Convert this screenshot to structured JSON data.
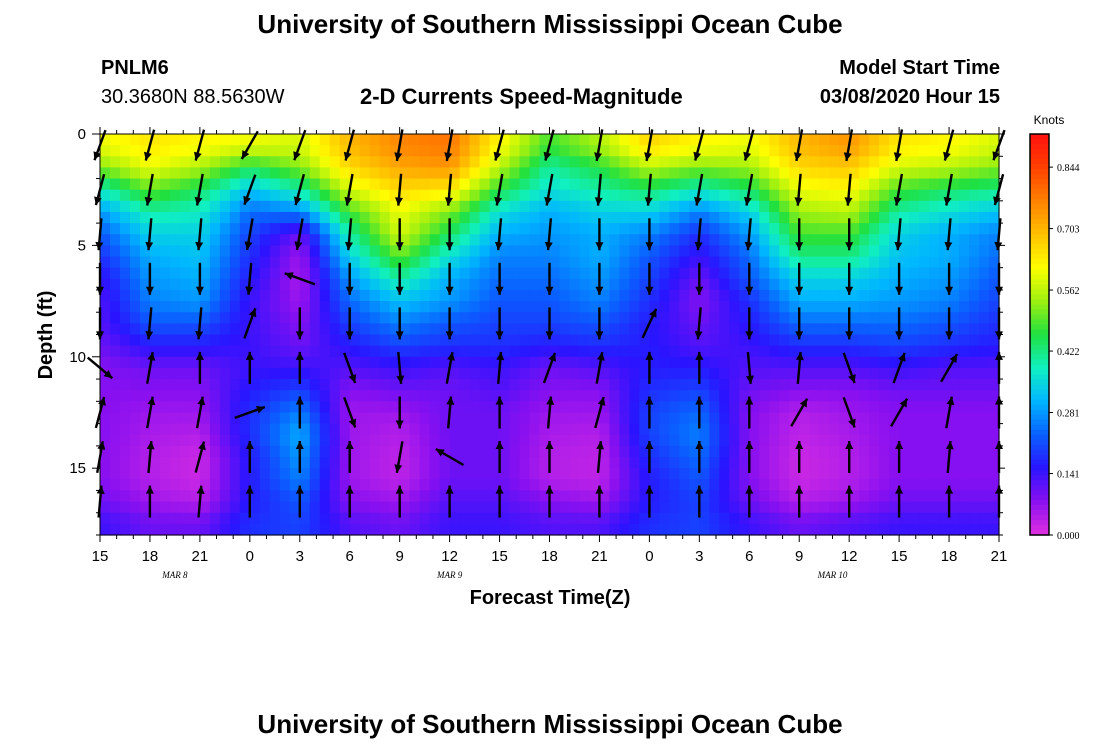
{
  "header": {
    "title": "University of Southern Mississippi Ocean Cube",
    "station_id": "PNLM6",
    "station_coords": "30.3680N 88.5630W",
    "subtitle": "2-D Currents Speed-Magnitude",
    "model_start_label": "Model Start Time",
    "model_start_value": "03/08/2020 Hour 15"
  },
  "footer": {
    "title": "University of Southern Mississippi Ocean Cube"
  },
  "chart_data": {
    "type": "heatmap",
    "title": "2-D Currents Speed-Magnitude",
    "xlabel": "Forecast Time(Z)",
    "ylabel": "Depth (ft)",
    "x_tick_labels": [
      "15",
      "18",
      "21",
      "0",
      "3",
      "6",
      "9",
      "12",
      "15",
      "18",
      "21",
      "0",
      "3",
      "6",
      "9",
      "12",
      "15",
      "18",
      "21"
    ],
    "x_tick_hours": [
      0,
      3,
      6,
      9,
      12,
      15,
      18,
      21,
      24,
      27,
      30,
      33,
      36,
      39,
      42,
      45,
      48,
      51,
      54
    ],
    "date_labels": [
      {
        "text": "MAR 8",
        "hour": 4.5
      },
      {
        "text": "MAR 9",
        "hour": 21
      },
      {
        "text": "MAR 10",
        "hour": 44
      }
    ],
    "y_ticks": [
      0,
      5,
      10,
      15
    ],
    "ylim": [
      0,
      18
    ],
    "xlim": [
      0,
      54
    ],
    "colorbar": {
      "unit": "Knots",
      "ticks": [
        "0.844",
        "0.703",
        "0.562",
        "0.422",
        "0.281",
        "0.141",
        "0.000"
      ],
      "range": [
        0.0,
        0.92
      ],
      "colors": [
        "#e030e0",
        "#8a10f0",
        "#2a14ff",
        "#0a60ff",
        "#00b6ff",
        "#10f0c0",
        "#20e040",
        "#9ef010",
        "#ffff00",
        "#ffc000",
        "#ff8000",
        "#ff4000",
        "#ff1010"
      ]
    },
    "depths_ft": [
      0.5,
      1.5,
      2.5,
      3.5,
      4.5,
      5.5,
      6.5,
      7.5,
      8.5,
      9.5,
      10.5,
      11.5,
      12.5,
      13.5,
      14.5,
      15.5,
      16.5,
      17.5
    ],
    "hours": [
      0,
      3,
      6,
      9,
      12,
      15,
      18,
      21,
      24,
      27,
      30,
      33,
      36,
      39,
      42,
      45,
      48,
      51,
      54
    ],
    "speed_knots": [
      [
        0.6,
        0.64,
        0.62,
        0.6,
        0.58,
        0.7,
        0.76,
        0.78,
        0.62,
        0.48,
        0.55,
        0.66,
        0.62,
        0.6,
        0.7,
        0.74,
        0.64,
        0.62,
        0.58
      ],
      [
        0.52,
        0.6,
        0.55,
        0.45,
        0.52,
        0.66,
        0.72,
        0.74,
        0.56,
        0.4,
        0.46,
        0.56,
        0.52,
        0.54,
        0.66,
        0.68,
        0.58,
        0.56,
        0.52
      ],
      [
        0.38,
        0.5,
        0.44,
        0.32,
        0.4,
        0.58,
        0.66,
        0.64,
        0.46,
        0.36,
        0.4,
        0.44,
        0.38,
        0.44,
        0.6,
        0.62,
        0.48,
        0.44,
        0.42
      ],
      [
        0.28,
        0.4,
        0.38,
        0.24,
        0.26,
        0.48,
        0.6,
        0.52,
        0.36,
        0.3,
        0.34,
        0.34,
        0.26,
        0.34,
        0.54,
        0.56,
        0.4,
        0.36,
        0.32
      ],
      [
        0.22,
        0.34,
        0.34,
        0.2,
        0.1,
        0.4,
        0.58,
        0.44,
        0.3,
        0.28,
        0.3,
        0.26,
        0.18,
        0.28,
        0.48,
        0.48,
        0.34,
        0.3,
        0.26
      ],
      [
        0.18,
        0.3,
        0.32,
        0.18,
        0.06,
        0.34,
        0.5,
        0.36,
        0.26,
        0.26,
        0.3,
        0.22,
        0.14,
        0.24,
        0.42,
        0.42,
        0.32,
        0.3,
        0.24
      ],
      [
        0.14,
        0.28,
        0.3,
        0.16,
        0.05,
        0.28,
        0.4,
        0.3,
        0.24,
        0.24,
        0.28,
        0.2,
        0.1,
        0.22,
        0.34,
        0.34,
        0.3,
        0.28,
        0.22
      ],
      [
        0.12,
        0.26,
        0.28,
        0.14,
        0.06,
        0.24,
        0.32,
        0.28,
        0.22,
        0.22,
        0.26,
        0.18,
        0.08,
        0.18,
        0.3,
        0.3,
        0.28,
        0.26,
        0.2
      ],
      [
        0.12,
        0.22,
        0.22,
        0.14,
        0.08,
        0.2,
        0.26,
        0.22,
        0.2,
        0.2,
        0.22,
        0.16,
        0.1,
        0.16,
        0.24,
        0.24,
        0.24,
        0.22,
        0.18
      ],
      [
        0.1,
        0.16,
        0.16,
        0.14,
        0.1,
        0.16,
        0.2,
        0.18,
        0.18,
        0.16,
        0.18,
        0.16,
        0.12,
        0.14,
        0.18,
        0.18,
        0.2,
        0.18,
        0.16
      ],
      [
        0.08,
        0.1,
        0.1,
        0.14,
        0.14,
        0.12,
        0.14,
        0.12,
        0.14,
        0.1,
        0.12,
        0.16,
        0.16,
        0.12,
        0.12,
        0.12,
        0.14,
        0.12,
        0.12
      ],
      [
        0.08,
        0.08,
        0.08,
        0.16,
        0.2,
        0.08,
        0.1,
        0.1,
        0.12,
        0.08,
        0.08,
        0.18,
        0.2,
        0.1,
        0.08,
        0.08,
        0.1,
        0.1,
        0.1
      ],
      [
        0.08,
        0.06,
        0.06,
        0.18,
        0.26,
        0.06,
        0.06,
        0.1,
        0.1,
        0.06,
        0.06,
        0.2,
        0.24,
        0.08,
        0.04,
        0.06,
        0.08,
        0.08,
        0.08
      ],
      [
        0.08,
        0.05,
        0.04,
        0.18,
        0.3,
        0.06,
        0.04,
        0.1,
        0.1,
        0.05,
        0.04,
        0.2,
        0.26,
        0.08,
        0.03,
        0.05,
        0.08,
        0.08,
        0.08
      ],
      [
        0.08,
        0.04,
        0.02,
        0.16,
        0.28,
        0.06,
        0.03,
        0.1,
        0.1,
        0.04,
        0.03,
        0.18,
        0.24,
        0.08,
        0.02,
        0.04,
        0.08,
        0.08,
        0.08
      ],
      [
        0.08,
        0.04,
        0.02,
        0.16,
        0.26,
        0.06,
        0.03,
        0.1,
        0.1,
        0.04,
        0.03,
        0.16,
        0.22,
        0.08,
        0.02,
        0.04,
        0.08,
        0.08,
        0.08
      ],
      [
        0.1,
        0.06,
        0.04,
        0.16,
        0.22,
        0.08,
        0.06,
        0.12,
        0.12,
        0.08,
        0.06,
        0.16,
        0.2,
        0.1,
        0.04,
        0.06,
        0.1,
        0.1,
        0.1
      ],
      [
        0.14,
        0.1,
        0.1,
        0.18,
        0.2,
        0.12,
        0.1,
        0.14,
        0.14,
        0.12,
        0.12,
        0.18,
        0.2,
        0.14,
        0.1,
        0.12,
        0.14,
        0.14,
        0.14
      ]
    ],
    "vector_depths_ft": [
      0.5,
      2.5,
      4.5,
      6.5,
      8.5,
      10.5,
      12.5,
      14.5,
      16.5
    ],
    "direction_deg": [
      [
        200,
        195,
        195,
        210,
        200,
        195,
        190,
        190,
        195,
        195,
        190,
        190,
        195,
        195,
        190,
        190,
        190,
        195,
        200
      ],
      [
        195,
        190,
        190,
        200,
        195,
        190,
        185,
        185,
        190,
        190,
        185,
        185,
        190,
        190,
        185,
        185,
        190,
        190,
        195
      ],
      [
        185,
        185,
        185,
        190,
        190,
        185,
        180,
        180,
        185,
        185,
        180,
        180,
        185,
        185,
        180,
        180,
        185,
        185,
        185
      ],
      [
        180,
        180,
        180,
        185,
        290,
        180,
        180,
        180,
        180,
        180,
        180,
        180,
        180,
        180,
        180,
        180,
        180,
        180,
        180
      ],
      [
        180,
        185,
        185,
        20,
        180,
        180,
        180,
        180,
        180,
        180,
        180,
        25,
        185,
        180,
        180,
        180,
        180,
        180,
        180
      ],
      [
        130,
        10,
        0,
        0,
        0,
        160,
        175,
        10,
        5,
        20,
        10,
        0,
        0,
        175,
        5,
        160,
        20,
        30,
        0
      ],
      [
        15,
        10,
        10,
        70,
        0,
        160,
        180,
        5,
        0,
        5,
        15,
        0,
        0,
        0,
        30,
        160,
        30,
        10,
        0
      ],
      [
        10,
        5,
        15,
        0,
        0,
        0,
        190,
        300,
        0,
        0,
        5,
        0,
        0,
        0,
        0,
        0,
        0,
        5,
        0
      ],
      [
        5,
        0,
        5,
        0,
        0,
        0,
        0,
        0,
        0,
        0,
        0,
        0,
        0,
        0,
        0,
        0,
        0,
        0,
        0
      ]
    ]
  }
}
